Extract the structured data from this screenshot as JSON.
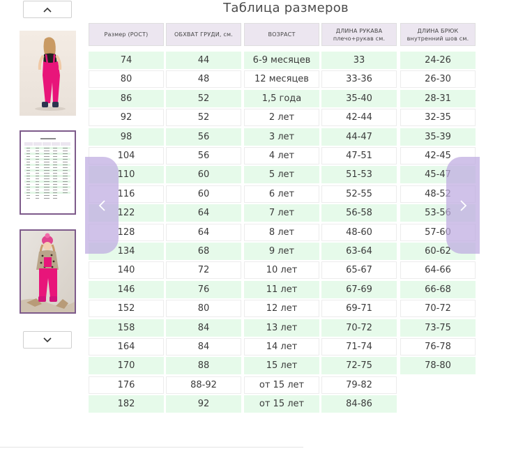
{
  "title": "Таблица размеров",
  "headers": [
    {
      "line1": "Размер (РОСТ)",
      "line2": ""
    },
    {
      "line1": "ОБХВАТ ГРУДИ, см.",
      "line2": ""
    },
    {
      "line1": "ВОЗРАСТ",
      "line2": ""
    },
    {
      "line1": "ДЛИНА РУКАВА",
      "line2": "плечо+рукав см."
    },
    {
      "line1": "ДЛИНА БРЮК",
      "line2": "внутренний шов см."
    }
  ],
  "rows": [
    [
      "74",
      "44",
      "6-9 месяцев",
      "33",
      "24-26"
    ],
    [
      "80",
      "48",
      "12 месяцев",
      "33-36",
      "26-30"
    ],
    [
      "86",
      "52",
      "1,5 года",
      "35-40",
      "28-31"
    ],
    [
      "92",
      "52",
      "2 лет",
      "42-44",
      "32-35"
    ],
    [
      "98",
      "56",
      "3 лет",
      "44-47",
      "35-39"
    ],
    [
      "104",
      "56",
      "4 лет",
      "47-51",
      "42-45"
    ],
    [
      "110",
      "60",
      "5 лет",
      "51-53",
      "45-47"
    ],
    [
      "116",
      "60",
      "6 лет",
      "52-55",
      "48-52"
    ],
    [
      "122",
      "64",
      "7 лет",
      "56-58",
      "53-56"
    ],
    [
      "128",
      "64",
      "8 лет",
      "48-60",
      "57-60"
    ],
    [
      "134",
      "68",
      "9 лет",
      "63-64",
      "60-62"
    ],
    [
      "140",
      "72",
      "10 лет",
      "65-67",
      "64-66"
    ],
    [
      "146",
      "76",
      "11 лет",
      "67-69",
      "66-68"
    ],
    [
      "152",
      "80",
      "12 лет",
      "69-71",
      "70-72"
    ],
    [
      "158",
      "84",
      "13 лет",
      "70-72",
      "73-75"
    ],
    [
      "164",
      "84",
      "14 лет",
      "71-74",
      "76-78"
    ],
    [
      "170",
      "88",
      "15 лет",
      "72-75",
      "78-80"
    ],
    [
      "176",
      "88-92",
      "от 15 лет",
      "79-82",
      ""
    ],
    [
      "182",
      "92",
      "от 15 лет",
      "84-86",
      ""
    ]
  ],
  "icons": {
    "up": "chevron-up-icon",
    "down": "chevron-down-icon",
    "prev": "chevron-left-icon",
    "next": "chevron-right-icon"
  },
  "colors": {
    "header_bg": "#ece6f0",
    "row_green": "#e6faea",
    "active_thumb_border": "#7d5a8a",
    "arrow_overlay": "#beaae1",
    "jumpsuit_pink": "#e8157a"
  }
}
